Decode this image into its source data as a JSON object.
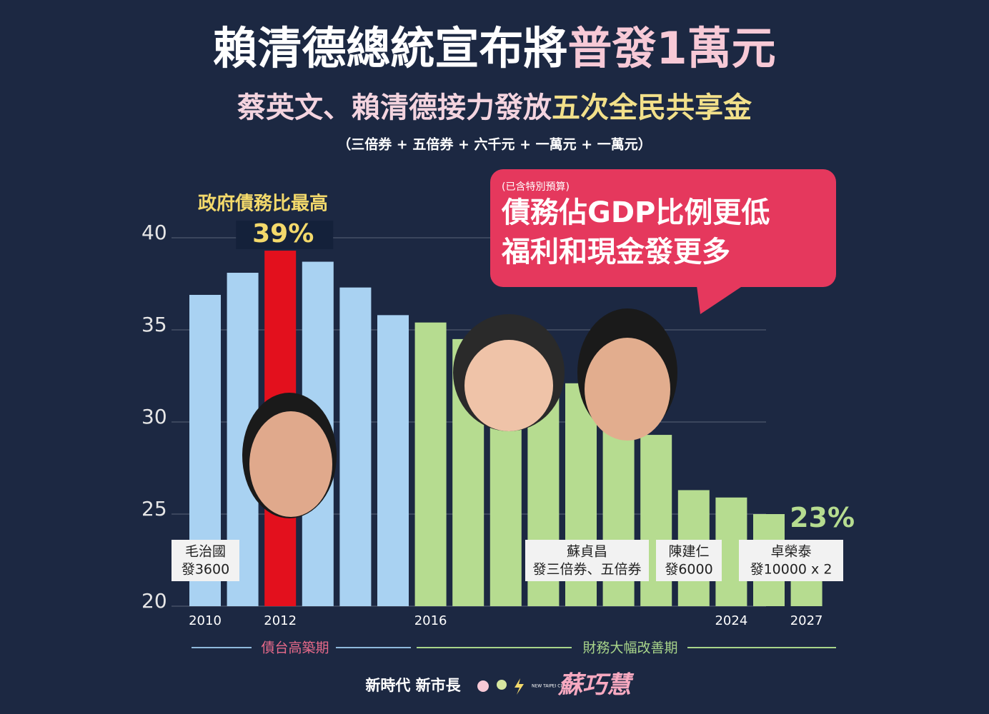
{
  "chart_data": {
    "type": "bar",
    "title": "賴清德總統宣布將",
    "title_highlight": "普發1萬元",
    "subtitle": "蔡英文、賴清德接力發放",
    "subtitle_highlight": "五次全民共享金",
    "note": "（三倍券 + 五倍券 + 六千元 + 一萬元 + 一萬元）",
    "peak_annotation": "政府債務比最高",
    "callout": {
      "small": "(已含特別預算)",
      "line1": "債務佔GDP比例更低",
      "line2": "福利和現金發更多"
    },
    "categories": [
      "2010",
      null,
      "2012",
      null,
      null,
      null,
      "2016",
      null,
      null,
      null,
      null,
      null,
      null,
      null,
      "2024",
      null,
      "2027"
    ],
    "values": [
      36.9,
      38.1,
      39.3,
      38.7,
      37.3,
      35.8,
      35.4,
      34.5,
      33.6,
      32.6,
      32.1,
      29.8,
      29.3,
      26.3,
      25.9,
      25.0,
      23
    ],
    "value_labels": [
      null,
      null,
      "39%",
      null,
      null,
      null,
      null,
      null,
      null,
      null,
      null,
      null,
      null,
      null,
      null,
      null,
      "23%"
    ],
    "colors": [
      "#a9d2f2",
      "#a9d2f2",
      "#e3101d",
      "#a9d2f2",
      "#a9d2f2",
      "#a9d2f2",
      "#b6dc90",
      "#b6dc90",
      "#b6dc90",
      "#b6dc90",
      "#b6dc90",
      "#b6dc90",
      "#b6dc90",
      "#b6dc90",
      "#b6dc90",
      "#b6dc90",
      "#b6dc90"
    ],
    "ylim": [
      20,
      40
    ],
    "yticks": [
      20,
      25,
      30,
      35,
      40
    ],
    "grid": true,
    "premier_boxes": [
      {
        "name": "毛治國",
        "payout": "發3600"
      },
      {
        "name": "蘇貞昌",
        "payout": "發三倍券、五倍券"
      },
      {
        "name": "陳建仁",
        "payout": "發6000"
      },
      {
        "name": "卓榮泰",
        "payout": "發10000 x 2"
      }
    ],
    "periods": [
      "債台高築期",
      "財務大幅改善期"
    ],
    "footer": {
      "slogan": "新時代 新市長",
      "city": "NEW TAIPEI CITY",
      "name": "蘇巧慧"
    }
  }
}
